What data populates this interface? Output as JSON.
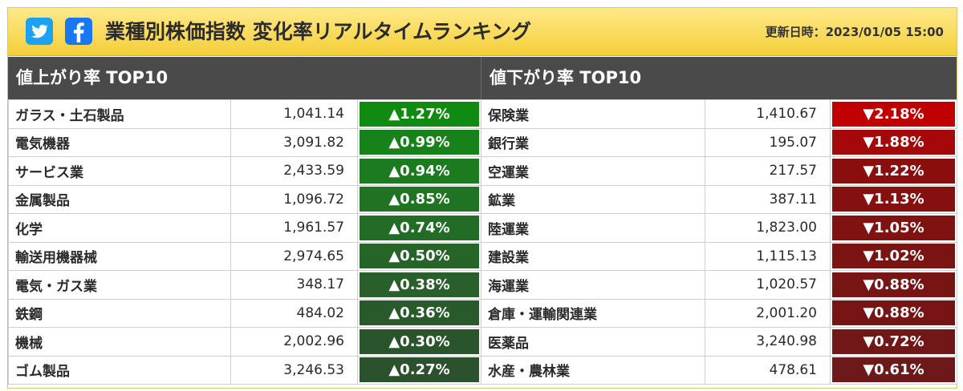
{
  "header": {
    "title": "業種別株価指数 変化率リアルタイムランキング",
    "updated_label": "更新日時：2023/01/05 15:00",
    "share": [
      {
        "icon": "twitter-icon",
        "color": "#1da1f2"
      },
      {
        "icon": "facebook-icon",
        "color": "#1877f2"
      }
    ]
  },
  "rising": {
    "heading": "値上がり率 TOP10",
    "rows": [
      {
        "name": "ガラス・土石製品",
        "value": "1,041.14",
        "change": "▲1.27%",
        "color": "#118a11"
      },
      {
        "name": "電気機器",
        "value": "3,091.82",
        "change": "▲0.99%",
        "color": "#17821a"
      },
      {
        "name": "サービス業",
        "value": "2,433.59",
        "change": "▲0.94%",
        "color": "#1c7a1f"
      },
      {
        "name": "金属製品",
        "value": "1,096.72",
        "change": "▲0.85%",
        "color": "#207322"
      },
      {
        "name": "化学",
        "value": "1,961.57",
        "change": "▲0.74%",
        "color": "#236c25"
      },
      {
        "name": "輸送用機器械",
        "value": "2,974.65",
        "change": "▲0.50%",
        "color": "#266428"
      },
      {
        "name": "電気・ガス業",
        "value": "348.17",
        "change": "▲0.38%",
        "color": "#285f2a"
      },
      {
        "name": "鉄鋼",
        "value": "484.02",
        "change": "▲0.36%",
        "color": "#295a2b"
      },
      {
        "name": "機械",
        "value": "2,002.96",
        "change": "▲0.30%",
        "color": "#2a552c"
      },
      {
        "name": "ゴム製品",
        "value": "3,246.53",
        "change": "▲0.27%",
        "color": "#2b512d"
      }
    ]
  },
  "falling": {
    "heading": "値下がり率 TOP10",
    "rows": [
      {
        "name": "保険業",
        "value": "1,410.67",
        "change": "▼2.18%",
        "color": "#c00000"
      },
      {
        "name": "銀行業",
        "value": "195.07",
        "change": "▼1.88%",
        "color": "#a40808"
      },
      {
        "name": "空運業",
        "value": "217.57",
        "change": "▼1.22%",
        "color": "#8a0e0e"
      },
      {
        "name": "鉱業",
        "value": "387.11",
        "change": "▼1.13%",
        "color": "#851010"
      },
      {
        "name": "陸運業",
        "value": "1,823.00",
        "change": "▼1.05%",
        "color": "#801212"
      },
      {
        "name": "建設業",
        "value": "1,115.13",
        "change": "▼1.02%",
        "color": "#7c1313"
      },
      {
        "name": "海運業",
        "value": "1,020.57",
        "change": "▼0.88%",
        "color": "#771515"
      },
      {
        "name": "倉庫・運輸関連業",
        "value": "2,001.20",
        "change": "▼0.88%",
        "color": "#771515"
      },
      {
        "name": "医薬品",
        "value": "3,240.98",
        "change": "▼0.72%",
        "color": "#721717"
      },
      {
        "name": "水産・農林業",
        "value": "478.61",
        "change": "▼0.61%",
        "color": "#6d1919"
      }
    ]
  }
}
